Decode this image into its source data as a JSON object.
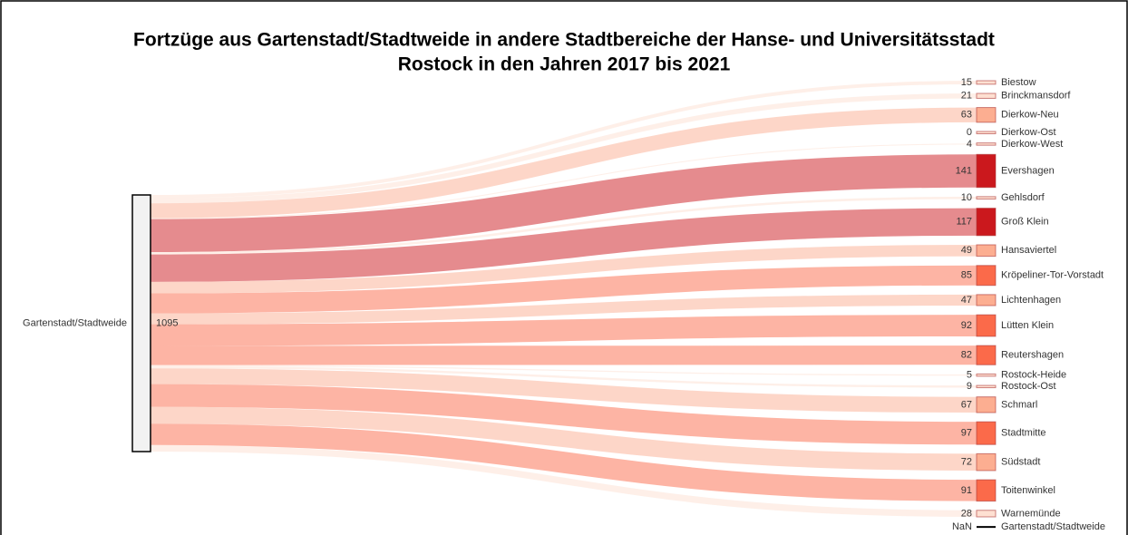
{
  "chart_data": {
    "type": "sankey",
    "title": [
      "Fortzüge aus Gartenstadt/Stadtweide in andere Stadtbereiche der Hanse- und Universitätsstadt",
      "Rostock in den Jahren 2017 bis 2021"
    ],
    "source": {
      "name": "Gartenstadt/Stadtweide",
      "value": 1095,
      "color": "#f2f2f2"
    },
    "categories": [
      "Biestow",
      "Brinckmansdorf",
      "Dierkow-Neu",
      "Dierkow-Ost",
      "Dierkow-West",
      "Evershagen",
      "Gehlsdorf",
      "Groß Klein",
      "Hansaviertel",
      "Kröpeliner-Tor-Vorstadt",
      "Lichtenhagen",
      "Lütten Klein",
      "Reutershagen",
      "Rostock-Heide",
      "Rostock-Ost",
      "Schmarl",
      "Stadtmitte",
      "Südstadt",
      "Toitenwinkel",
      "Warnemünde"
    ],
    "values": [
      15,
      21,
      63,
      0,
      4,
      141,
      10,
      117,
      49,
      85,
      47,
      92,
      82,
      5,
      9,
      67,
      97,
      72,
      91,
      28
    ],
    "colors": [
      "#fee0d2",
      "#fee0d2",
      "#fcae91",
      "#fee0d2",
      "#fee0d2",
      "#cb181d",
      "#fee0d2",
      "#cb181d",
      "#fcae91",
      "#fb6a4a",
      "#fcae91",
      "#fb6a4a",
      "#fb6a4a",
      "#fee0d2",
      "#fee0d2",
      "#fcae91",
      "#fb6a4a",
      "#fcae91",
      "#fb6a4a",
      "#fee0d2"
    ],
    "self_node": {
      "name": "Gartenstadt/Stadtweide",
      "label": "NaN",
      "color": "#000000"
    }
  }
}
